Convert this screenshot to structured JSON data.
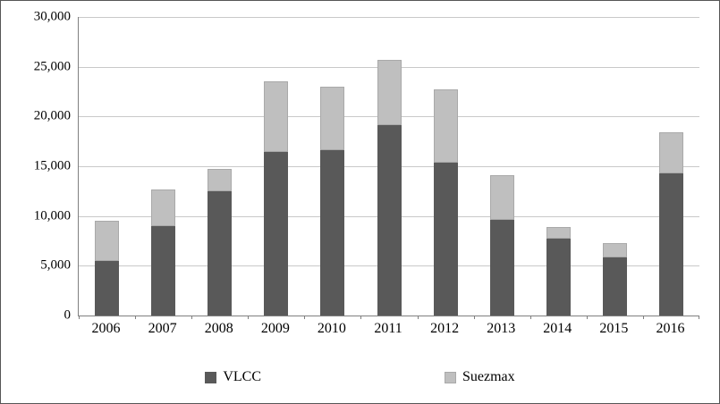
{
  "chart_data": {
    "type": "bar",
    "stacked": true,
    "title": "",
    "xlabel": "",
    "ylabel": "",
    "categories": [
      "2006",
      "2007",
      "2008",
      "2009",
      "2010",
      "2011",
      "2012",
      "2013",
      "2014",
      "2015",
      "2016"
    ],
    "series": [
      {
        "name": "VLCC",
        "color": "#595959",
        "values": [
          5500,
          9000,
          12500,
          16400,
          16600,
          19100,
          15400,
          9600,
          7700,
          5800,
          14300
        ]
      },
      {
        "name": "Suezmax",
        "color": "#bfbfbf",
        "values": [
          4000,
          3700,
          2200,
          7100,
          6400,
          6600,
          7300,
          4500,
          1200,
          1500,
          4100
        ]
      }
    ],
    "ylim": [
      0,
      30000
    ],
    "ytick_step": 5000,
    "ytick_labels": [
      "0",
      "5,000",
      "10,000",
      "15,000",
      "20,000",
      "25,000",
      "30,000"
    ],
    "grid": true,
    "legend_position": "bottom"
  }
}
